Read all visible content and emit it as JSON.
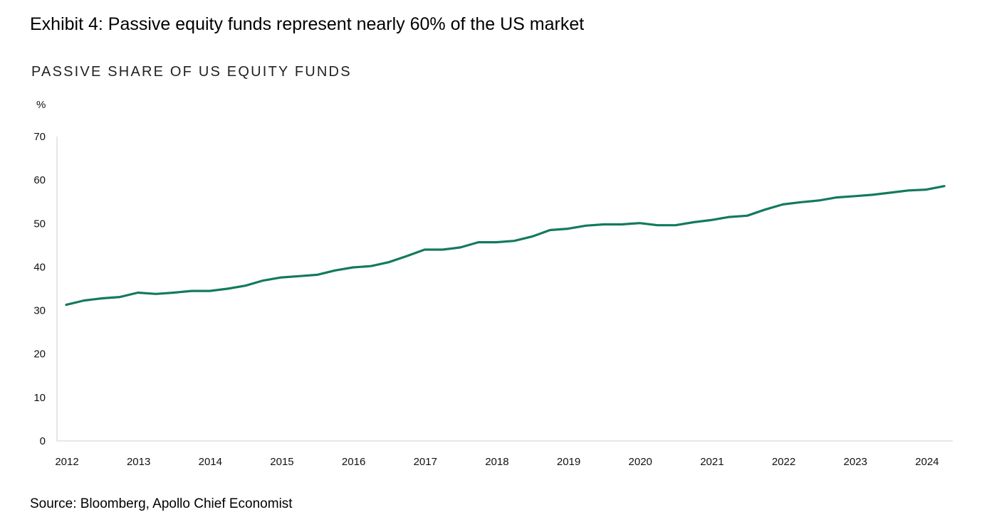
{
  "exhibit_title": "Exhibit 4: Passive equity funds represent nearly 60% of the US market",
  "source": "Source: Bloomberg, Apollo Chief Economist",
  "colors": {
    "line": "#137a5e",
    "axis": "#cfcfcf"
  },
  "chart_data": {
    "type": "line",
    "title": "PASSIVE SHARE OF US EQUITY FUNDS",
    "ylabel": "%",
    "xlabel": "",
    "ylim": [
      0,
      70
    ],
    "yticks": [
      0,
      10,
      20,
      30,
      40,
      50,
      60,
      70
    ],
    "xlim": [
      2012,
      2024.25
    ],
    "xticks": [
      2012,
      2013,
      2014,
      2015,
      2016,
      2017,
      2018,
      2019,
      2020,
      2021,
      2022,
      2023,
      2024
    ],
    "grid": false,
    "series": [
      {
        "x": [
          2012.0,
          2012.25,
          2012.5,
          2012.75,
          2013.0,
          2013.25,
          2013.5,
          2013.75,
          2014.0,
          2014.25,
          2014.5,
          2014.75,
          2015.0,
          2015.25,
          2015.5,
          2015.75,
          2016.0,
          2016.25,
          2016.5,
          2016.75,
          2017.0,
          2017.25,
          2017.5,
          2017.75,
          2018.0,
          2018.25,
          2018.5,
          2018.75,
          2019.0,
          2019.25,
          2019.5,
          2019.75,
          2020.0,
          2020.25,
          2020.5,
          2020.75,
          2021.0,
          2021.25,
          2021.5,
          2021.75,
          2022.0,
          2022.25,
          2022.5,
          2022.75,
          2023.0,
          2023.25,
          2023.5,
          2023.75,
          2024.0,
          2024.25
        ],
        "values": [
          31.3,
          32.3,
          32.8,
          33.1,
          34.1,
          33.8,
          34.1,
          34.5,
          34.5,
          35.0,
          35.7,
          36.9,
          37.6,
          37.9,
          38.2,
          39.2,
          39.9,
          40.2,
          41.1,
          42.5,
          44.0,
          44.0,
          44.5,
          45.7,
          45.7,
          46.0,
          47.0,
          48.5,
          48.8,
          49.5,
          49.8,
          49.8,
          50.1,
          49.6,
          49.6,
          50.3,
          50.8,
          51.5,
          51.8,
          53.2,
          54.4,
          54.9,
          55.3,
          56.0,
          56.3,
          56.6,
          57.1,
          57.6,
          57.8,
          58.6
        ]
      }
    ]
  }
}
